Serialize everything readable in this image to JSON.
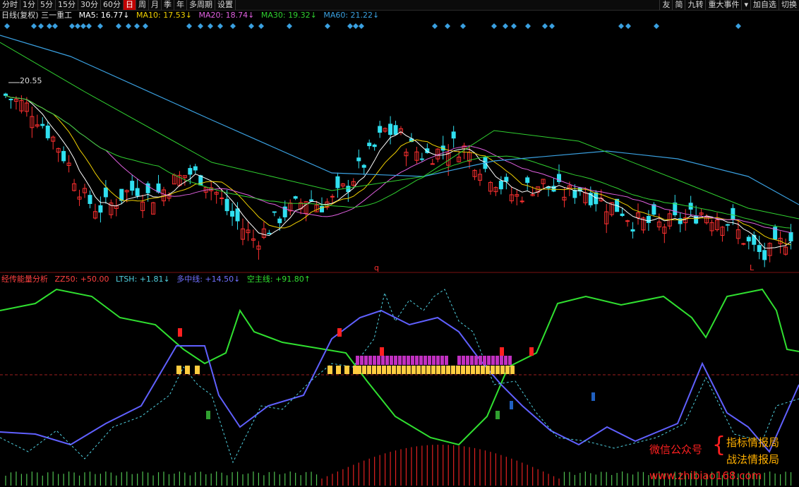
{
  "toolbar": {
    "periods": [
      "分时",
      "1分",
      "5分",
      "15分",
      "30分",
      "60分",
      "日",
      "周",
      "月",
      "季",
      "年",
      "多周期",
      "设置"
    ],
    "active_period": "日",
    "right_buttons": [
      "友",
      "简",
      "九转",
      "重大事件",
      "▾",
      "加自选",
      "切换"
    ]
  },
  "chart_header": {
    "title": "日线(复权) 三一重工",
    "ma5": "MA5: 16.77↓",
    "ma10": "MA10: 17.53↓",
    "ma20": "MA20: 18.74↓",
    "ma30": "MA30: 19.32↓",
    "ma60": "MA60: 21.22↓",
    "high_label": "20.55",
    "marker_q": "q",
    "marker_l": "L"
  },
  "indicator_header": {
    "name": "经传能量分析",
    "zz50": "ZZ50: +50.00",
    "ltsh": "LTSH: +1.81↓",
    "mid_line": "多中线: +14.50↓",
    "empty_main": "空主线: +91.80↑"
  },
  "watermark": {
    "wechat": "微信公众号",
    "line1": "指标情报局",
    "line2": "战法情报局",
    "site": "www.zhibiao168.com"
  },
  "colors": {
    "up": "#ff3030",
    "down": "#30e0f0",
    "ma5": "#ffffff",
    "ma10": "#f0d000",
    "ma20": "#e060e0",
    "ma30": "#30d030",
    "ma60": "#3aa0e0",
    "green_line": "#30e030",
    "blue_line": "#6060ff",
    "dotted": "#50d0e0"
  },
  "chart_data": {
    "type": "candlestick",
    "title": "日线(复权) 三一重工",
    "price_high": 20.55,
    "price_trend": [
      20.5,
      20.3,
      20.1,
      19.6,
      19.1,
      18.4,
      17.6,
      17.3,
      17.4,
      17.7,
      17.9,
      17.6,
      17.8,
      18.1,
      18.3,
      18.2,
      17.8,
      17.2,
      16.8,
      16.4,
      16.7,
      17.1,
      17.3,
      17.6,
      17.4,
      17.5,
      17.9,
      18.4,
      18.9,
      19.5,
      19.4,
      19.0,
      18.8,
      18.9,
      19.1,
      19.0,
      18.6,
      18.3,
      17.9,
      17.6,
      17.9,
      18.0,
      17.8,
      17.7,
      17.9,
      17.6,
      17.4,
      17.3,
      16.9,
      16.9,
      16.8,
      16.9,
      17.0,
      17.2,
      17.1,
      17.0,
      16.6,
      16.2,
      15.9,
      16.2,
      16.6
    ],
    "indicator_series": [
      "ZZ50",
      "LTSH",
      "多中线",
      "空主线"
    ],
    "indicator_values": {
      "ZZ50": 50.0,
      "LTSH": 1.81,
      "多中线": 14.5,
      "空主线": 91.8
    }
  }
}
